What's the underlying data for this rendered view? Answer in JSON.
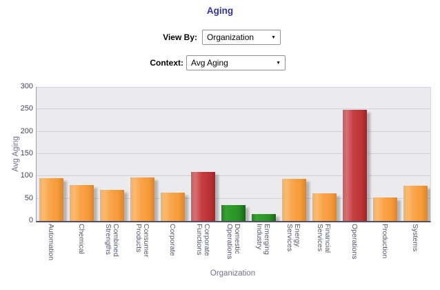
{
  "title": "Aging",
  "controls": {
    "view_by_label": "View By:",
    "view_by_value": "Organization",
    "context_label": "Context:",
    "context_value": "Avg Aging",
    "dropdown_arrow": "▼"
  },
  "chart_data": {
    "type": "bar",
    "title": "Aging",
    "xlabel": "Organization",
    "ylabel": "Avg Aging",
    "ylim": [
      0,
      300
    ],
    "ytick_step": 50,
    "grid": true,
    "legend": "none",
    "categories": [
      "Automation",
      "Chemical",
      "Combined\nStrengths",
      "Consumer\nProducts",
      "Corporate",
      "Corporate\nFunctions",
      "Domestic\nOperations",
      "Emerging\nIndustry",
      "Energy\nServices",
      "Financial\nServices",
      "Operations",
      "Production",
      "Systems"
    ],
    "values": [
      96,
      81,
      69,
      98,
      63,
      110,
      36,
      15,
      94,
      62,
      249,
      53,
      79
    ],
    "bar_colors": [
      "orange",
      "orange",
      "orange",
      "orange",
      "orange",
      "red",
      "green",
      "green",
      "orange",
      "orange",
      "red",
      "orange",
      "orange"
    ]
  },
  "colors": {
    "title": "#3232a8",
    "plot_bg": "#ebebee",
    "gridline": "#d0d0de",
    "palette": {
      "orange": [
        "#f6ae5e",
        "#fbba6e",
        "#f9a447",
        "#f59a39",
        "#e08427"
      ],
      "red": [
        "#cd5e60",
        "#d66e70",
        "#c63c3f",
        "#bf3336",
        "#9f2427"
      ],
      "green": [
        "#23821f",
        "#35a231",
        "#2f9a2b",
        "#288f24",
        "#156612"
      ]
    }
  }
}
